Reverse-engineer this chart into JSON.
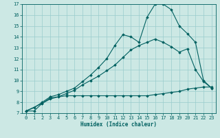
{
  "title": "",
  "xlabel": "Humidex (Indice chaleur)",
  "bg_color": "#cce8e4",
  "line_color": "#006060",
  "grid_color": "#99cccc",
  "xlim": [
    -0.5,
    23.5
  ],
  "ylim": [
    7,
    17
  ],
  "xticks": [
    0,
    1,
    2,
    3,
    4,
    5,
    6,
    7,
    8,
    9,
    10,
    11,
    12,
    13,
    14,
    15,
    16,
    17,
    18,
    19,
    20,
    21,
    22,
    23
  ],
  "yticks": [
    7,
    8,
    9,
    10,
    11,
    12,
    13,
    14,
    15,
    16,
    17
  ],
  "line1_x": [
    0,
    1,
    2,
    3,
    4,
    5,
    6,
    7,
    8,
    9,
    10,
    11,
    12,
    13,
    14,
    15,
    16,
    17,
    18,
    19,
    20,
    21,
    22,
    23
  ],
  "line1_y": [
    7.2,
    7.2,
    7.9,
    8.4,
    8.5,
    8.6,
    8.6,
    8.6,
    8.6,
    8.6,
    8.6,
    8.6,
    8.6,
    8.6,
    8.6,
    8.6,
    8.7,
    8.8,
    8.9,
    9.0,
    9.2,
    9.3,
    9.4,
    9.4
  ],
  "line2_x": [
    0,
    2,
    3,
    4,
    5,
    6,
    7,
    8,
    9,
    10,
    11,
    12,
    13,
    14,
    15,
    16,
    17,
    18,
    19,
    20,
    21,
    22,
    23
  ],
  "line2_y": [
    7.2,
    7.9,
    8.3,
    8.5,
    8.8,
    9.1,
    9.6,
    10.0,
    10.4,
    10.9,
    11.4,
    12.1,
    12.8,
    13.2,
    13.5,
    13.8,
    13.5,
    13.1,
    12.6,
    12.9,
    11.0,
    9.9,
    9.3
  ],
  "line3_x": [
    0,
    1,
    2,
    3,
    4,
    5,
    6,
    7,
    8,
    9,
    10,
    11,
    12,
    13,
    14,
    15,
    16,
    17,
    18,
    19,
    20,
    21,
    22,
    23
  ],
  "line3_y": [
    7.2,
    7.5,
    8.0,
    8.5,
    8.7,
    9.0,
    9.3,
    9.9,
    10.5,
    11.2,
    12.0,
    13.2,
    14.2,
    14.0,
    13.5,
    15.8,
    17.0,
    17.0,
    16.5,
    15.0,
    14.3,
    13.5,
    10.0,
    9.3
  ]
}
